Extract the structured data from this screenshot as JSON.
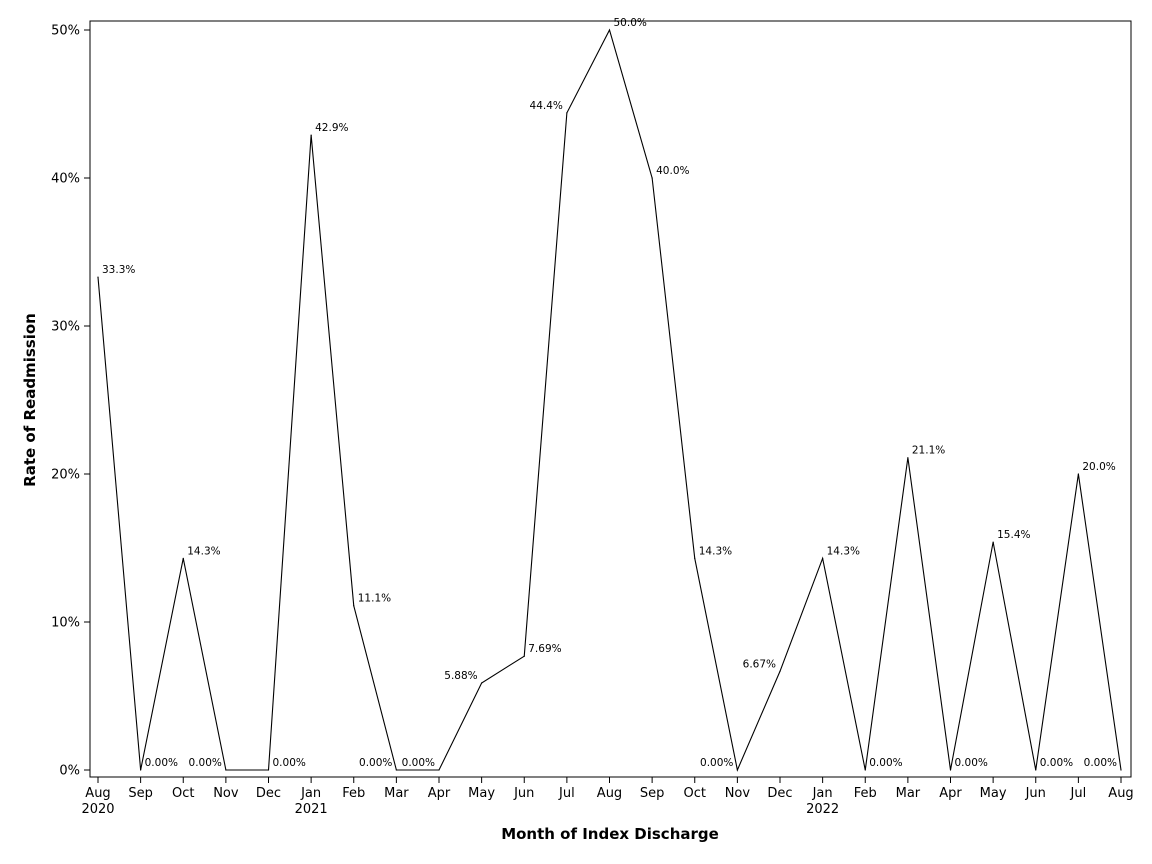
{
  "chart_data": {
    "type": "line",
    "title": "",
    "xlabel": "Month of Index Discharge",
    "ylabel": "Rate of Readmission",
    "ylim": [
      0,
      50
    ],
    "y_ticks": [
      {
        "value": 0,
        "label": "0%"
      },
      {
        "value": 10,
        "label": "10%"
      },
      {
        "value": 20,
        "label": "20%"
      },
      {
        "value": 30,
        "label": "30%"
      },
      {
        "value": 40,
        "label": "40%"
      },
      {
        "value": 50,
        "label": "50%"
      }
    ],
    "categories": [
      "Aug",
      "Sep",
      "Oct",
      "Nov",
      "Dec",
      "Jan",
      "Feb",
      "Mar",
      "Apr",
      "May",
      "Jun",
      "Jul",
      "Aug",
      "Sep",
      "Oct",
      "Nov",
      "Dec",
      "Jan",
      "Feb",
      "Mar",
      "Apr",
      "May",
      "Jun",
      "Jul",
      "Aug"
    ],
    "year_labels": [
      {
        "index": 0,
        "label": "2020"
      },
      {
        "index": 5,
        "label": "2021"
      },
      {
        "index": 17,
        "label": "2022"
      }
    ],
    "values": [
      33.3,
      0,
      14.3,
      0,
      0,
      42.9,
      11.1,
      0,
      0,
      5.88,
      7.69,
      44.4,
      50.0,
      40.0,
      14.3,
      0,
      6.67,
      14.3,
      0,
      21.1,
      0,
      15.4,
      0,
      20.0,
      0
    ],
    "data_labels": [
      {
        "index": 0,
        "text": "33.3%",
        "pos": "right"
      },
      {
        "index": 1,
        "text": "0.00%",
        "pos": "right"
      },
      {
        "index": 2,
        "text": "14.3%",
        "pos": "right"
      },
      {
        "index": 3,
        "text": "0.00%",
        "pos": "left"
      },
      {
        "index": 4,
        "text": "0.00%",
        "pos": "right"
      },
      {
        "index": 5,
        "text": "42.9%",
        "pos": "right"
      },
      {
        "index": 6,
        "text": "11.1%",
        "pos": "right"
      },
      {
        "index": 7,
        "text": "0.00%",
        "pos": "left"
      },
      {
        "index": 8,
        "text": "0.00%",
        "pos": "left"
      },
      {
        "index": 9,
        "text": "5.88%",
        "pos": "left"
      },
      {
        "index": 10,
        "text": "7.69%",
        "pos": "right"
      },
      {
        "index": 11,
        "text": "44.4%",
        "pos": "left"
      },
      {
        "index": 12,
        "text": "50.0%",
        "pos": "right"
      },
      {
        "index": 13,
        "text": "40.0%",
        "pos": "right"
      },
      {
        "index": 14,
        "text": "14.3%",
        "pos": "right"
      },
      {
        "index": 15,
        "text": "0.00%",
        "pos": "left"
      },
      {
        "index": 16,
        "text": "6.67%",
        "pos": "left"
      },
      {
        "index": 17,
        "text": "14.3%",
        "pos": "right"
      },
      {
        "index": 18,
        "text": "0.00%",
        "pos": "right"
      },
      {
        "index": 19,
        "text": "21.1%",
        "pos": "right"
      },
      {
        "index": 20,
        "text": "0.00%",
        "pos": "right"
      },
      {
        "index": 21,
        "text": "15.4%",
        "pos": "right"
      },
      {
        "index": 22,
        "text": "0.00%",
        "pos": "right"
      },
      {
        "index": 23,
        "text": "20.0%",
        "pos": "right"
      },
      {
        "index": 24,
        "text": "0.00%",
        "pos": "left"
      }
    ],
    "grid": false,
    "legend": "none",
    "line_color": "#000000"
  }
}
